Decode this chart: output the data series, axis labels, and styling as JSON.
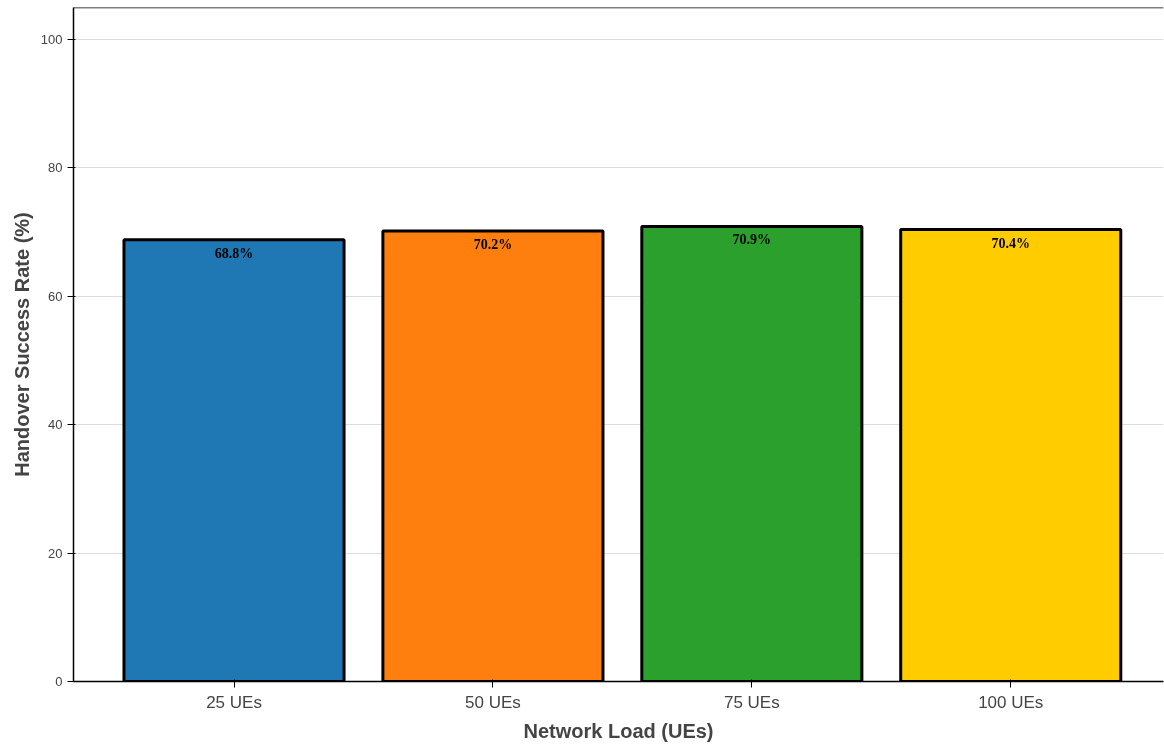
{
  "chart_data": {
    "type": "bar",
    "xlabel": "Network Load (UEs)",
    "ylabel": "Handover Success Rate (%)",
    "categories": [
      "25 UEs",
      "50 UEs",
      "75 UEs",
      "100 UEs"
    ],
    "values": [
      68.8,
      70.2,
      70.9,
      70.4
    ],
    "value_labels": [
      "68.8%",
      "70.2%",
      "70.9%",
      "70.4%"
    ],
    "colors": [
      "#1f77b4",
      "#ff7f0e",
      "#2ca02c",
      "#ffcc00"
    ],
    "ylim": [
      0,
      105
    ],
    "yticks": [
      0,
      20,
      40,
      60,
      80,
      100
    ],
    "grid": "y"
  }
}
